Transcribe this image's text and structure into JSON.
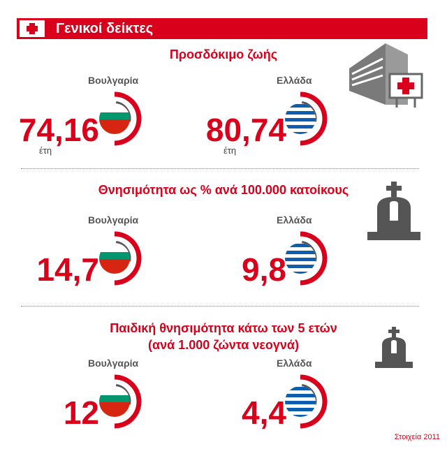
{
  "header": {
    "title": "Γενικοί δείκτες"
  },
  "sections": [
    {
      "title": "Προσδόκιμο ζωής",
      "left": {
        "country": "Βουλγαρία",
        "value": "74,16",
        "unit": "έτη"
      },
      "right": {
        "country": "Ελλάδα",
        "value": "80,74",
        "unit": "έτη"
      }
    },
    {
      "title": "Θνησιμότητα ως % ανά 100.000 κατοίκους",
      "left": {
        "country": "Βουλγαρία",
        "value": "14,7"
      },
      "right": {
        "country": "Ελλάδα",
        "value": "9,8"
      }
    },
    {
      "title_line1": "Παιδική θνησιμότητα κάτω των 5 ετών",
      "title_line2": "(ανά 1.000 ζώντα νεογνά)",
      "left": {
        "country": "Βουλγαρία",
        "value": "12"
      },
      "right": {
        "country": "Ελλάδα",
        "value": "4,4"
      }
    }
  ],
  "footer": {
    "source": "Στοιχεία 2011"
  },
  "icons": [
    "plus-icon",
    "hospital-icon",
    "bulgaria-flag-icon",
    "greece-flag-icon",
    "tombstone-icon"
  ],
  "colors": {
    "accent": "#d9001b",
    "gray": "#555555"
  }
}
